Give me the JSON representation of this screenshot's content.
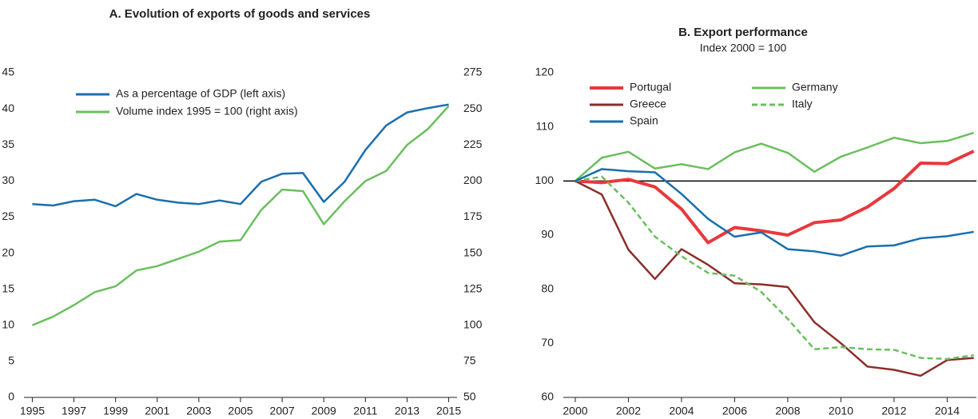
{
  "chart_data": [
    {
      "type": "line",
      "title": "A. Evolution of exports of goods and services",
      "x": [
        1995,
        1996,
        1997,
        1998,
        1999,
        2000,
        2001,
        2002,
        2003,
        2004,
        2005,
        2006,
        2007,
        2008,
        2009,
        2010,
        2011,
        2012,
        2013,
        2014,
        2015
      ],
      "xlim": [
        1994.6,
        2015.4
      ],
      "xticks": [
        1995,
        1997,
        1999,
        2001,
        2003,
        2005,
        2007,
        2009,
        2011,
        2013,
        2015
      ],
      "ylim": [
        0,
        45
      ],
      "yticks": [
        0,
        5,
        10,
        15,
        20,
        25,
        30,
        35,
        40,
        45
      ],
      "y2lim": [
        50,
        275
      ],
      "y2ticks": [
        50,
        75,
        100,
        125,
        150,
        175,
        200,
        225,
        250,
        275
      ],
      "series": [
        {
          "name": "As a percentage of GDP (left axis)",
          "color": "#1a6fad",
          "values": [
            26.8,
            26.6,
            27.2,
            27.4,
            26.5,
            28.2,
            27.4,
            27.0,
            26.8,
            27.3,
            26.8,
            29.9,
            31.0,
            31.1,
            27.1,
            29.9,
            34.3,
            37.7,
            39.5,
            40.1,
            40.6
          ]
        },
        {
          "name": "Volume index 1995 = 100 (right axis)",
          "color": "#6abf5e",
          "axis": "y2",
          "values": [
            100,
            106,
            114,
            123,
            127,
            138,
            141,
            146,
            151,
            158,
            159,
            180,
            194,
            193,
            170,
            186,
            200,
            207,
            225,
            236,
            252
          ]
        }
      ]
    },
    {
      "type": "line",
      "title": "B. Export performance",
      "subtitle": "Index 2000 = 100",
      "x": [
        2000,
        2001,
        2002,
        2003,
        2004,
        2005,
        2006,
        2007,
        2008,
        2009,
        2010,
        2011,
        2012,
        2013,
        2014,
        2015
      ],
      "xlim": [
        1999.55,
        2015.1
      ],
      "xticks": [
        2000,
        2002,
        2004,
        2006,
        2008,
        2010,
        2012,
        2014
      ],
      "ylim": [
        60,
        120
      ],
      "yticks": [
        60,
        70,
        80,
        90,
        100,
        110,
        120
      ],
      "reference_line": 100,
      "series": [
        {
          "name": "Portugal",
          "color": "#e8383d",
          "width": 4,
          "values": [
            100,
            99.7,
            100.3,
            98.9,
            94.8,
            88.6,
            91.4,
            90.8,
            90.0,
            92.3,
            92.8,
            95.2,
            98.6,
            103.3,
            103.2,
            105.5
          ]
        },
        {
          "name": "Germany",
          "color": "#6abf5e",
          "values": [
            100,
            104.3,
            105.4,
            102.3,
            103.1,
            102.2,
            105.3,
            106.9,
            105.2,
            101.7,
            104.5,
            106.2,
            108.0,
            107.0,
            107.4,
            108.9
          ]
        },
        {
          "name": "Greece",
          "color": "#8b2e2a",
          "values": [
            100,
            97.5,
            87.3,
            81.9,
            87.4,
            84.5,
            81.1,
            80.9,
            80.4,
            73.9,
            70.0,
            65.7,
            65.1,
            64.0,
            66.9,
            67.3
          ]
        },
        {
          "name": "Italy",
          "color": "#6abf5e",
          "dashed": true,
          "values": [
            100,
            100.8,
            96.0,
            89.7,
            86.1,
            83.0,
            82.5,
            79.5,
            74.5,
            68.9,
            69.3,
            68.9,
            68.8,
            67.3,
            67.1,
            67.8
          ]
        },
        {
          "name": "Spain",
          "color": "#1a6fad",
          "values": [
            100,
            102.2,
            101.8,
            101.6,
            97.6,
            93.0,
            89.7,
            90.5,
            87.4,
            87.0,
            86.2,
            87.9,
            88.1,
            89.4,
            89.8,
            90.6
          ]
        }
      ]
    }
  ]
}
